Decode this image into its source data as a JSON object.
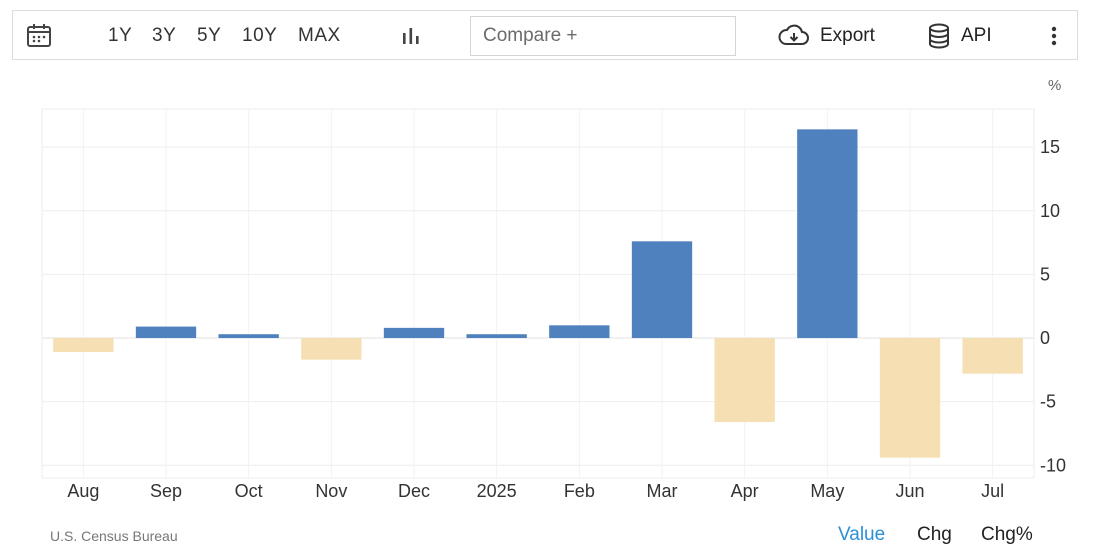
{
  "toolbar": {
    "ranges": [
      "1Y",
      "3Y",
      "5Y",
      "10Y",
      "MAX"
    ],
    "compare_placeholder": "Compare +",
    "export_label": "Export",
    "api_label": "API"
  },
  "chart_data": {
    "type": "bar",
    "unit": "%",
    "categories": [
      "Aug",
      "Sep",
      "Oct",
      "Nov",
      "Dec",
      "2025",
      "Feb",
      "Mar",
      "Apr",
      "May",
      "Jun",
      "Jul"
    ],
    "values": [
      -1.1,
      0.9,
      0.3,
      -1.7,
      0.8,
      0.3,
      1.0,
      7.6,
      -6.6,
      16.4,
      -9.4,
      -2.8
    ],
    "ylim": [
      -11,
      18
    ],
    "yticks": [
      -10,
      -5,
      0,
      5,
      10,
      15
    ],
    "grid": true,
    "colors": {
      "positive": "#4e81bd",
      "negative": "#f5dfb3"
    }
  },
  "footer": {
    "source": "U.S. Census Bureau",
    "tabs": [
      "Value",
      "Chg",
      "Chg%"
    ],
    "active_tab_color": "#2b8fd6"
  }
}
